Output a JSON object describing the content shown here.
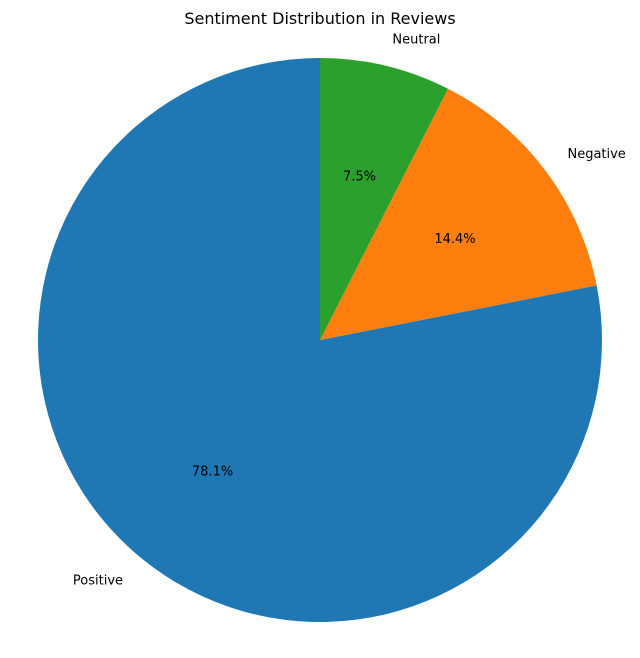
{
  "chart_data": {
    "type": "pie",
    "title": "Sentiment Distribution in Reviews",
    "categories": [
      "Positive",
      "Negative",
      "Neutral"
    ],
    "values": [
      78.1,
      14.4,
      7.5
    ],
    "percent_labels": [
      "78.1%",
      "14.4%",
      "7.5%"
    ],
    "colors": [
      "#1f77b4",
      "#ff7f0e",
      "#2ca02c"
    ],
    "start_angle_deg": 90,
    "direction": "counterclockwise",
    "legend": "none"
  }
}
